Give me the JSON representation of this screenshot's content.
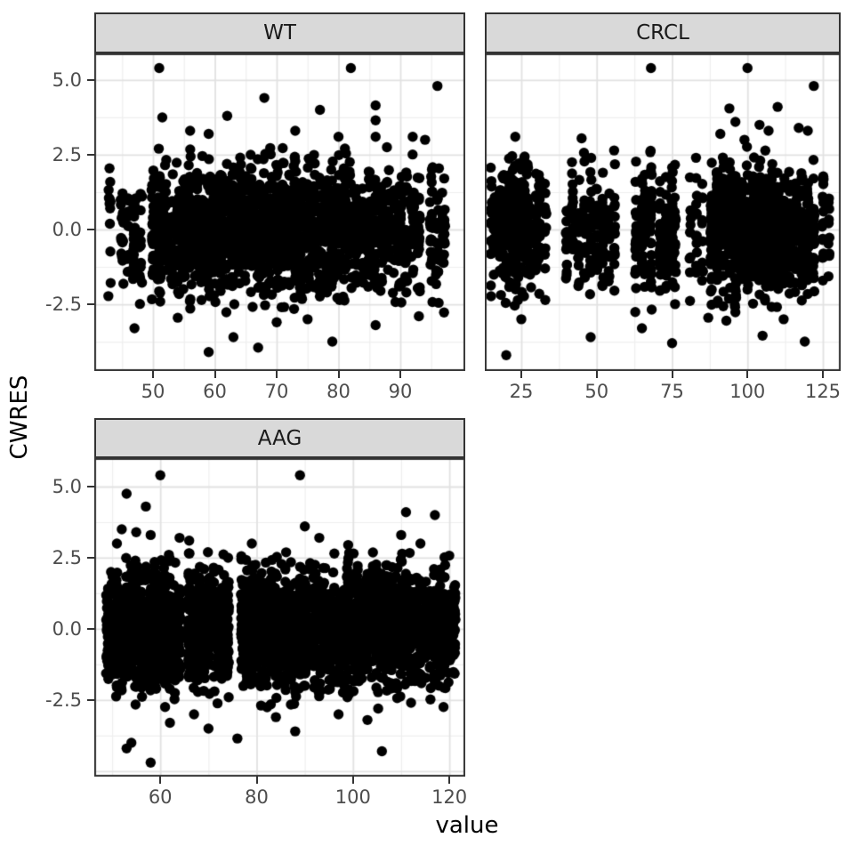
{
  "axes": {
    "x_title": "value",
    "y_title": "CWRES"
  },
  "style": {
    "background": "#ffffff",
    "strip_fill": "#d9d9d9",
    "strip_border": "#333333",
    "panel_border": "#333333",
    "grid_major_color": "#e2e2e2",
    "grid_minor_color": "#efefef",
    "point_color": "#000000",
    "point_radius": 5.7,
    "tick_label_color": "#4d4d4d",
    "axis_title_color": "#000000"
  },
  "chart_data": [
    {
      "type": "scatter",
      "facet": "WT",
      "xlabel": "value",
      "ylabel": "CWRES",
      "xlim": [
        40.5,
        100.5
      ],
      "ylim": [
        -4.73,
        5.89
      ],
      "x_tick_values": [
        50,
        60,
        70,
        80,
        90
      ],
      "x_tick_labels": [
        "50",
        "60",
        "70",
        "80",
        "90"
      ],
      "y_tick_values": [
        5.0,
        2.5,
        0.0,
        -2.5
      ],
      "y_tick_labels": [
        "5.0",
        "2.5",
        "0.0",
        "-2.5"
      ],
      "x_grid_major": [
        50,
        60,
        70,
        80,
        90
      ],
      "x_grid_minor": [
        45,
        55,
        65,
        75,
        85,
        95
      ],
      "y_grid_major": [
        5.0,
        2.5,
        0.0,
        -2.5
      ],
      "y_grid_minor": [
        3.75,
        1.25,
        -1.25,
        -3.75
      ],
      "show_y_labels": true,
      "y_sd": 1.05,
      "y_clamp": 2.8,
      "seed": 101,
      "clusters": [
        [
          43,
          12
        ],
        [
          45,
          18
        ],
        [
          46,
          10
        ],
        [
          47,
          25
        ],
        [
          48,
          14
        ],
        [
          50,
          30
        ],
        [
          51,
          45
        ],
        [
          52,
          40
        ],
        [
          53,
          30
        ],
        [
          54,
          35
        ],
        [
          55,
          50
        ],
        [
          56,
          45
        ],
        [
          57,
          40
        ],
        [
          58,
          55
        ],
        [
          59,
          45
        ],
        [
          60,
          50
        ],
        [
          61,
          55
        ],
        [
          62,
          45
        ],
        [
          63,
          60
        ],
        [
          64,
          50
        ],
        [
          65,
          55
        ],
        [
          66,
          50
        ],
        [
          67,
          45
        ],
        [
          68,
          55
        ],
        [
          69,
          50
        ],
        [
          70,
          60
        ],
        [
          71,
          50
        ],
        [
          72,
          45
        ],
        [
          73,
          55
        ],
        [
          74,
          40
        ],
        [
          75,
          50
        ],
        [
          76,
          45
        ],
        [
          77,
          40
        ],
        [
          78,
          50
        ],
        [
          79,
          45
        ],
        [
          80,
          40
        ],
        [
          81,
          45
        ],
        [
          82,
          35
        ],
        [
          83,
          40
        ],
        [
          84,
          35
        ],
        [
          85,
          40
        ],
        [
          86,
          30
        ],
        [
          87,
          35
        ],
        [
          88,
          30
        ],
        [
          89,
          25
        ],
        [
          90,
          30
        ],
        [
          91,
          25
        ],
        [
          92,
          28
        ],
        [
          93,
          22
        ],
        [
          95,
          25
        ],
        [
          96,
          20
        ],
        [
          97,
          22
        ]
      ],
      "outliers": [
        [
          51,
          5.4
        ],
        [
          82,
          5.4
        ],
        [
          96,
          4.8
        ],
        [
          68,
          4.4
        ],
        [
          77,
          4.0
        ],
        [
          86,
          4.15
        ],
        [
          86,
          3.65
        ],
        [
          86,
          3.1
        ],
        [
          62,
          3.8
        ],
        [
          51.5,
          3.75
        ],
        [
          56,
          3.3
        ],
        [
          59,
          3.2
        ],
        [
          73,
          3.3
        ],
        [
          80,
          3.1
        ],
        [
          92,
          3.1
        ],
        [
          94,
          3.0
        ],
        [
          47,
          -3.3
        ],
        [
          54,
          -2.95
        ],
        [
          59,
          -4.1
        ],
        [
          63,
          -3.6
        ],
        [
          67,
          -3.95
        ],
        [
          79,
          -3.75
        ],
        [
          86,
          -3.2
        ],
        [
          93,
          -2.9
        ],
        [
          70,
          -3.1
        ],
        [
          75,
          -3.0
        ]
      ]
    },
    {
      "type": "scatter",
      "facet": "CRCL",
      "xlabel": "value",
      "ylabel": "CWRES",
      "xlim": [
        12.9,
        130.9
      ],
      "ylim": [
        -4.73,
        5.89
      ],
      "x_tick_values": [
        25,
        50,
        75,
        100,
        125
      ],
      "x_tick_labels": [
        "25",
        "50",
        "75",
        "100",
        "125"
      ],
      "y_tick_values": [
        5.0,
        2.5,
        0.0,
        -2.5
      ],
      "y_tick_labels": [
        "5.0",
        "2.5",
        "0.0",
        "-2.5"
      ],
      "x_grid_major": [
        25,
        50,
        75,
        100,
        125
      ],
      "x_grid_minor": [
        37.5,
        62.5,
        87.5,
        112.5
      ],
      "y_grid_major": [
        5.0,
        2.5,
        0.0,
        -2.5
      ],
      "y_grid_minor": [
        3.75,
        1.25,
        -1.25,
        -3.75
      ],
      "show_y_labels": false,
      "y_sd": 1.05,
      "y_clamp": 2.8,
      "seed": 202,
      "clusters": [
        [
          15,
          15
        ],
        [
          16,
          22
        ],
        [
          18,
          30
        ],
        [
          19,
          25
        ],
        [
          20,
          35
        ],
        [
          21,
          28
        ],
        [
          22,
          32
        ],
        [
          23,
          25
        ],
        [
          24,
          28
        ],
        [
          25,
          22
        ],
        [
          26,
          20
        ],
        [
          27,
          25
        ],
        [
          28,
          18
        ],
        [
          30,
          22
        ],
        [
          31,
          16
        ],
        [
          33,
          14
        ],
        [
          40,
          15
        ],
        [
          42,
          20
        ],
        [
          44,
          18
        ],
        [
          46,
          15
        ],
        [
          48,
          22
        ],
        [
          50,
          18
        ],
        [
          52,
          20
        ],
        [
          54,
          15
        ],
        [
          56,
          18
        ],
        [
          63,
          20
        ],
        [
          65,
          25
        ],
        [
          66,
          20
        ],
        [
          68,
          30
        ],
        [
          71,
          25
        ],
        [
          73,
          30
        ],
        [
          75,
          35
        ],
        [
          76,
          20
        ],
        [
          81,
          10
        ],
        [
          83,
          12
        ],
        [
          85,
          10
        ],
        [
          88,
          35
        ],
        [
          90,
          45
        ],
        [
          92,
          50
        ],
        [
          94,
          55
        ],
        [
          96,
          60
        ],
        [
          98,
          55
        ],
        [
          100,
          60
        ],
        [
          102,
          55
        ],
        [
          104,
          60
        ],
        [
          106,
          55
        ],
        [
          108,
          50
        ],
        [
          110,
          55
        ],
        [
          112,
          50
        ],
        [
          114,
          45
        ],
        [
          116,
          40
        ],
        [
          118,
          35
        ],
        [
          120,
          30
        ],
        [
          122,
          25
        ],
        [
          125,
          18
        ],
        [
          127,
          10
        ]
      ],
      "outliers": [
        [
          68,
          5.4
        ],
        [
          100,
          5.4
        ],
        [
          122,
          4.8
        ],
        [
          110,
          4.1
        ],
        [
          94,
          4.05
        ],
        [
          96,
          3.6
        ],
        [
          104,
          3.5
        ],
        [
          107,
          3.3
        ],
        [
          91,
          3.2
        ],
        [
          99,
          3.0
        ],
        [
          117,
          3.4
        ],
        [
          120,
          3.3
        ],
        [
          23,
          3.1
        ],
        [
          45,
          3.05
        ],
        [
          20,
          -4.2
        ],
        [
          48,
          -3.6
        ],
        [
          75,
          -3.8
        ],
        [
          105,
          -3.55
        ],
        [
          93,
          -3.05
        ],
        [
          119,
          -3.75
        ],
        [
          112,
          -3.0
        ],
        [
          87,
          -2.95
        ],
        [
          25,
          -3.0
        ],
        [
          65,
          -3.3
        ]
      ]
    },
    {
      "type": "scatter",
      "facet": "AAG",
      "xlabel": "value",
      "ylabel": "CWRES",
      "xlim": [
        46.3,
        123.3
      ],
      "ylim": [
        -5.19,
        6.0
      ],
      "x_tick_values": [
        60,
        80,
        100,
        120
      ],
      "x_tick_labels": [
        "60",
        "80",
        "100",
        "120"
      ],
      "y_tick_values": [
        5.0,
        2.5,
        0.0,
        -2.5
      ],
      "y_tick_labels": [
        "5.0",
        "2.5",
        "0.0",
        "-2.5"
      ],
      "x_grid_major": [
        60,
        80,
        100,
        120
      ],
      "x_grid_minor": [
        50,
        70,
        90,
        110
      ],
      "y_grid_major": [
        5.0,
        2.5,
        0.0,
        -2.5,
        -5.0
      ],
      "y_grid_minor": [
        3.75,
        1.25,
        -1.25,
        -3.75
      ],
      "show_y_labels": true,
      "y_sd": 1.05,
      "y_clamp": 2.8,
      "seed": 303,
      "clusters": [
        [
          49,
          30
        ],
        [
          50,
          40
        ],
        [
          51,
          45
        ],
        [
          52,
          40
        ],
        [
          53,
          45
        ],
        [
          54,
          50
        ],
        [
          55,
          45
        ],
        [
          56,
          50
        ],
        [
          57,
          45
        ],
        [
          58,
          50
        ],
        [
          59,
          45
        ],
        [
          60,
          50
        ],
        [
          61,
          45
        ],
        [
          62,
          50
        ],
        [
          63,
          45
        ],
        [
          64,
          40
        ],
        [
          66,
          45
        ],
        [
          67,
          40
        ],
        [
          68,
          45
        ],
        [
          69,
          40
        ],
        [
          70,
          45
        ],
        [
          71,
          40
        ],
        [
          72,
          45
        ],
        [
          73,
          40
        ],
        [
          74,
          35
        ],
        [
          77,
          40
        ],
        [
          78,
          45
        ],
        [
          79,
          40
        ],
        [
          80,
          45
        ],
        [
          81,
          40
        ],
        [
          82,
          45
        ],
        [
          83,
          40
        ],
        [
          84,
          45
        ],
        [
          85,
          40
        ],
        [
          86,
          45
        ],
        [
          87,
          40
        ],
        [
          88,
          45
        ],
        [
          89,
          40
        ],
        [
          90,
          45
        ],
        [
          91,
          40
        ],
        [
          92,
          45
        ],
        [
          93,
          40
        ],
        [
          94,
          45
        ],
        [
          95,
          40
        ],
        [
          96,
          45
        ],
        [
          97,
          40
        ],
        [
          98,
          45
        ],
        [
          99,
          40
        ],
        [
          100,
          45
        ],
        [
          101,
          40
        ],
        [
          102,
          45
        ],
        [
          103,
          40
        ],
        [
          104,
          45
        ],
        [
          105,
          40
        ],
        [
          106,
          45
        ],
        [
          107,
          40
        ],
        [
          108,
          40
        ],
        [
          109,
          35
        ],
        [
          110,
          40
        ],
        [
          111,
          35
        ],
        [
          112,
          40
        ],
        [
          113,
          35
        ],
        [
          114,
          40
        ],
        [
          115,
          35
        ],
        [
          116,
          30
        ],
        [
          117,
          35
        ],
        [
          118,
          30
        ],
        [
          119,
          35
        ],
        [
          120,
          30
        ],
        [
          121,
          25
        ]
      ],
      "outliers": [
        [
          60,
          5.4
        ],
        [
          89,
          5.4
        ],
        [
          53,
          4.75
        ],
        [
          57,
          4.3
        ],
        [
          52,
          3.5
        ],
        [
          55,
          3.4
        ],
        [
          58,
          3.3
        ],
        [
          51,
          3.0
        ],
        [
          64,
          3.2
        ],
        [
          66,
          3.1
        ],
        [
          90,
          3.6
        ],
        [
          93,
          3.2
        ],
        [
          111,
          4.1
        ],
        [
          117,
          4.0
        ],
        [
          110,
          3.3
        ],
        [
          114,
          3.0
        ],
        [
          99,
          2.95
        ],
        [
          79,
          3.0
        ],
        [
          53,
          -4.2
        ],
        [
          58,
          -4.7
        ],
        [
          54,
          -4.0
        ],
        [
          70,
          -3.5
        ],
        [
          76,
          -3.85
        ],
        [
          88,
          -3.6
        ],
        [
          106,
          -4.3
        ],
        [
          103,
          -3.2
        ],
        [
          97,
          -3.0
        ],
        [
          84,
          -3.1
        ],
        [
          62,
          -3.3
        ],
        [
          67,
          -3.0
        ]
      ]
    }
  ]
}
